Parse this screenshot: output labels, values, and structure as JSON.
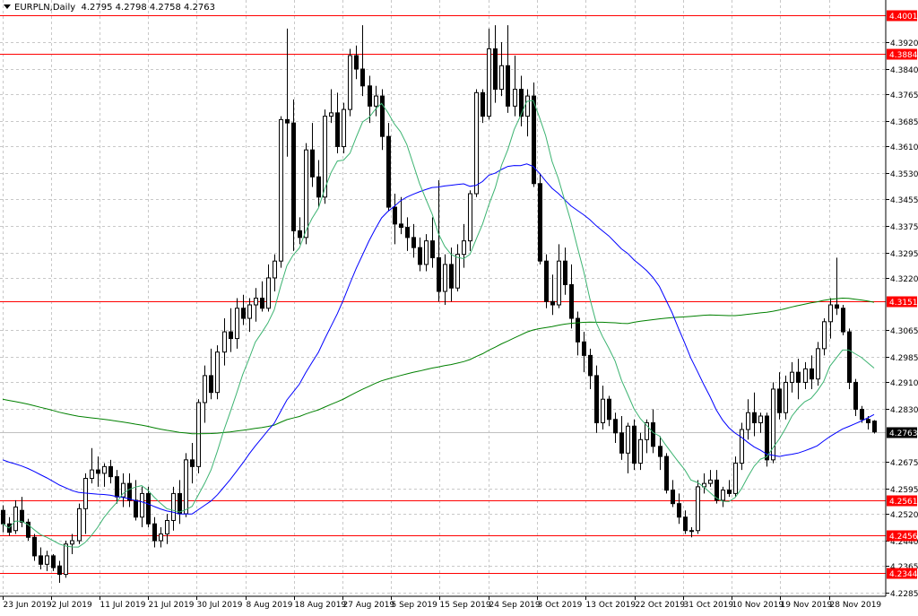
{
  "header": {
    "symbol": "EURPLN,Daily",
    "ohlc": "4.2795 4.2798 4.2758 4.2763"
  },
  "colors": {
    "background": "#ffffff",
    "grid": "#c8c8c8",
    "candle_outline": "#000000",
    "bull_body": "#ffffff",
    "bear_body": "#000000",
    "level_line": "#ff0000",
    "ma_fast": "#3cb371",
    "ma_mid": "#0000ff",
    "ma_slow": "#008000",
    "price_tag_bg": "#000000"
  },
  "chart_data": {
    "type": "candlestick",
    "ylim": [
      4.2275,
      4.4045
    ],
    "y_ticks": [
      "4.3920",
      "4.3840",
      "4.3765",
      "4.3685",
      "4.3610",
      "4.3530",
      "4.3455",
      "4.3375",
      "4.3295",
      "4.3220",
      "4.3065",
      "4.2985",
      "4.2910",
      "4.2830",
      "4.2675",
      "4.2595",
      "4.2520",
      "4.2440",
      "4.2365",
      "4.2285"
    ],
    "x_labels": [
      "23 Jun 2019",
      "2 Jul 2019",
      "11 Jul 2019",
      "21 Jul 2019",
      "30 Jul 2019",
      "8 Aug 2019",
      "18 Aug 2019",
      "27 Aug 2019",
      "5 Sep 2019",
      "15 Sep 2019",
      "24 Sep 2019",
      "3 Oct 2019",
      "13 Oct 2019",
      "22 Oct 2019",
      "31 Oct 2019",
      "10 Nov 2019",
      "19 Nov 2019",
      "28 Nov 2019"
    ],
    "levels": [
      "4.4001",
      "4.3884",
      "4.3151",
      "4.2561",
      "4.2456",
      "4.2344"
    ],
    "current_price": "4.2763",
    "candles": [
      [
        4.253,
        4.2545,
        4.2465,
        4.249
      ],
      [
        4.249,
        4.251,
        4.2455,
        4.2465
      ],
      [
        4.247,
        4.256,
        4.246,
        4.254
      ],
      [
        4.253,
        4.257,
        4.248,
        4.2495
      ],
      [
        4.2495,
        4.2505,
        4.244,
        4.245
      ],
      [
        4.245,
        4.246,
        4.238,
        4.2395
      ],
      [
        4.2395,
        4.242,
        4.2355,
        4.237
      ],
      [
        4.237,
        4.241,
        4.235,
        4.2395
      ],
      [
        4.2395,
        4.24,
        4.235,
        4.236
      ],
      [
        4.2365,
        4.238,
        4.2315,
        4.234
      ],
      [
        4.234,
        4.244,
        4.233,
        4.243
      ],
      [
        4.243,
        4.246,
        4.24,
        4.244
      ],
      [
        4.244,
        4.255,
        4.243,
        4.2535
      ],
      [
        4.2535,
        4.264,
        4.246,
        4.2625
      ],
      [
        4.2625,
        4.2715,
        4.261,
        4.265
      ],
      [
        4.265,
        4.269,
        4.26,
        4.264
      ],
      [
        4.264,
        4.267,
        4.26,
        4.266
      ],
      [
        4.266,
        4.268,
        4.261,
        4.263
      ],
      [
        4.263,
        4.265,
        4.255,
        4.257
      ],
      [
        4.257,
        4.264,
        4.254,
        4.261
      ],
      [
        4.261,
        4.264,
        4.254,
        4.256
      ],
      [
        4.256,
        4.262,
        4.25,
        4.251
      ],
      [
        4.251,
        4.26,
        4.248,
        4.258
      ],
      [
        4.258,
        4.26,
        4.248,
        4.249
      ],
      [
        4.249,
        4.251,
        4.242,
        4.244
      ],
      [
        4.244,
        4.248,
        4.242,
        4.246
      ],
      [
        4.246,
        4.252,
        4.243,
        4.25
      ],
      [
        4.25,
        4.26,
        4.247,
        4.258
      ],
      [
        4.258,
        4.262,
        4.249,
        4.252
      ],
      [
        4.252,
        4.27,
        4.251,
        4.268
      ],
      [
        4.268,
        4.273,
        4.261,
        4.266
      ],
      [
        4.266,
        4.286,
        4.264,
        4.285
      ],
      [
        4.285,
        4.296,
        4.279,
        4.293
      ],
      [
        4.293,
        4.301,
        4.286,
        4.288
      ],
      [
        4.288,
        4.302,
        4.286,
        4.3
      ],
      [
        4.3,
        4.31,
        4.296,
        4.306
      ],
      [
        4.306,
        4.313,
        4.3,
        4.304
      ],
      [
        4.304,
        4.316,
        4.301,
        4.313
      ],
      [
        4.313,
        4.317,
        4.308,
        4.31
      ],
      [
        4.31,
        4.316,
        4.306,
        4.314
      ],
      [
        4.314,
        4.319,
        4.309,
        4.316
      ],
      [
        4.316,
        4.321,
        4.312,
        4.313
      ],
      [
        4.313,
        4.326,
        4.312,
        4.322
      ],
      [
        4.322,
        4.329,
        4.318,
        4.327
      ],
      [
        4.327,
        4.37,
        4.325,
        4.369
      ],
      [
        4.369,
        4.396,
        4.358,
        4.368
      ],
      [
        4.368,
        4.375,
        4.33,
        4.336
      ],
      [
        4.336,
        4.34,
        4.332,
        4.334
      ],
      [
        4.334,
        4.362,
        4.332,
        4.36
      ],
      [
        4.36,
        4.368,
        4.349,
        4.352
      ],
      [
        4.352,
        4.357,
        4.343,
        4.346
      ],
      [
        4.346,
        4.372,
        4.344,
        4.37
      ],
      [
        4.37,
        4.378,
        4.368,
        4.371
      ],
      [
        4.371,
        4.377,
        4.359,
        4.361
      ],
      [
        4.361,
        4.374,
        4.359,
        4.372
      ],
      [
        4.372,
        4.39,
        4.37,
        4.388
      ],
      [
        4.388,
        4.391,
        4.381,
        4.384
      ],
      [
        4.384,
        4.397,
        4.376,
        4.379
      ],
      [
        4.379,
        4.382,
        4.368,
        4.373
      ],
      [
        4.373,
        4.379,
        4.37,
        4.376
      ],
      [
        4.376,
        4.378,
        4.36,
        4.364
      ],
      [
        4.364,
        4.368,
        4.342,
        4.343
      ],
      [
        4.343,
        4.347,
        4.332,
        4.338
      ],
      [
        4.338,
        4.346,
        4.335,
        4.337
      ],
      [
        4.337,
        4.34,
        4.33,
        4.334
      ],
      [
        4.334,
        4.338,
        4.328,
        4.331
      ],
      [
        4.331,
        4.334,
        4.324,
        4.326
      ],
      [
        4.326,
        4.335,
        4.324,
        4.333
      ],
      [
        4.333,
        4.34,
        4.325,
        4.328
      ],
      [
        4.328,
        4.351,
        4.315,
        4.318
      ],
      [
        4.318,
        4.329,
        4.314,
        4.326
      ],
      [
        4.326,
        4.331,
        4.315,
        4.319
      ],
      [
        4.319,
        4.332,
        4.318,
        4.329
      ],
      [
        4.329,
        4.338,
        4.325,
        4.333
      ],
      [
        4.333,
        4.348,
        4.33,
        4.347
      ],
      [
        4.347,
        4.378,
        4.346,
        4.377
      ],
      [
        4.377,
        4.378,
        4.368,
        4.37
      ],
      [
        4.37,
        4.396,
        4.369,
        4.39
      ],
      [
        4.39,
        4.397,
        4.374,
        4.378
      ],
      [
        4.378,
        4.392,
        4.376,
        4.385
      ],
      [
        4.385,
        4.397,
        4.371,
        4.373
      ],
      [
        4.373,
        4.388,
        4.37,
        4.378
      ],
      [
        4.378,
        4.382,
        4.367,
        4.37
      ],
      [
        4.37,
        4.378,
        4.364,
        4.376
      ],
      [
        4.376,
        4.38,
        4.349,
        4.35
      ],
      [
        4.35,
        4.353,
        4.326,
        4.327
      ],
      [
        4.327,
        4.329,
        4.313,
        4.315
      ],
      [
        4.315,
        4.323,
        4.311,
        4.314
      ],
      [
        4.314,
        4.332,
        4.313,
        4.327
      ],
      [
        4.327,
        4.331,
        4.317,
        4.32
      ],
      [
        4.32,
        4.326,
        4.307,
        4.31
      ],
      [
        4.31,
        4.312,
        4.299,
        4.303
      ],
      [
        4.303,
        4.306,
        4.294,
        4.299
      ],
      [
        4.299,
        4.301,
        4.289,
        4.293
      ],
      [
        4.293,
        4.296,
        4.276,
        4.279
      ],
      [
        4.279,
        4.29,
        4.277,
        4.286
      ],
      [
        4.286,
        4.287,
        4.278,
        4.28
      ],
      [
        4.28,
        4.282,
        4.273,
        4.276
      ],
      [
        4.276,
        4.281,
        4.268,
        4.27
      ],
      [
        4.27,
        4.279,
        4.264,
        4.278
      ],
      [
        4.278,
        4.28,
        4.265,
        4.267
      ],
      [
        4.267,
        4.276,
        4.265,
        4.274
      ],
      [
        4.274,
        4.28,
        4.27,
        4.279
      ],
      [
        4.279,
        4.283,
        4.27,
        4.272
      ],
      [
        4.272,
        4.275,
        4.265,
        4.269
      ],
      [
        4.269,
        4.27,
        4.258,
        4.259
      ],
      [
        4.259,
        4.262,
        4.254,
        4.255
      ],
      [
        4.255,
        4.258,
        4.249,
        4.251
      ],
      [
        4.251,
        4.253,
        4.246,
        4.247
      ],
      [
        4.247,
        4.248,
        4.245,
        4.247
      ],
      [
        4.247,
        4.262,
        4.246,
        4.26
      ],
      [
        4.26,
        4.264,
        4.258,
        4.261
      ],
      [
        4.261,
        4.265,
        4.26,
        4.262
      ],
      [
        4.262,
        4.265,
        4.255,
        4.256
      ],
      [
        4.256,
        4.26,
        4.254,
        4.259
      ],
      [
        4.259,
        4.262,
        4.257,
        4.258
      ],
      [
        4.258,
        4.269,
        4.257,
        4.267
      ],
      [
        4.267,
        4.279,
        4.265,
        4.277
      ],
      [
        4.277,
        4.286,
        4.274,
        4.282
      ],
      [
        4.282,
        4.288,
        4.275,
        4.279
      ],
      [
        4.279,
        4.282,
        4.276,
        4.281
      ],
      [
        4.281,
        4.282,
        4.266,
        4.268
      ],
      [
        4.268,
        4.291,
        4.267,
        4.289
      ],
      [
        4.289,
        4.294,
        4.28,
        4.282
      ],
      [
        4.282,
        4.293,
        4.28,
        4.291
      ],
      [
        4.291,
        4.297,
        4.288,
        4.294
      ],
      [
        4.294,
        4.298,
        4.286,
        4.291
      ],
      [
        4.291,
        4.297,
        4.289,
        4.295
      ],
      [
        4.295,
        4.299,
        4.289,
        4.292
      ],
      [
        4.292,
        4.303,
        4.29,
        4.301
      ],
      [
        4.301,
        4.31,
        4.299,
        4.309
      ],
      [
        4.309,
        4.316,
        4.304,
        4.314
      ],
      [
        4.314,
        4.328,
        4.311,
        4.313
      ],
      [
        4.313,
        4.314,
        4.305,
        4.306
      ],
      [
        4.306,
        4.307,
        4.289,
        4.291
      ],
      [
        4.291,
        4.292,
        4.281,
        4.283
      ],
      [
        4.283,
        4.284,
        4.279,
        4.28
      ],
      [
        4.28,
        4.281,
        4.277,
        4.279
      ],
      [
        4.2795,
        4.2798,
        4.2758,
        4.2763
      ]
    ]
  }
}
